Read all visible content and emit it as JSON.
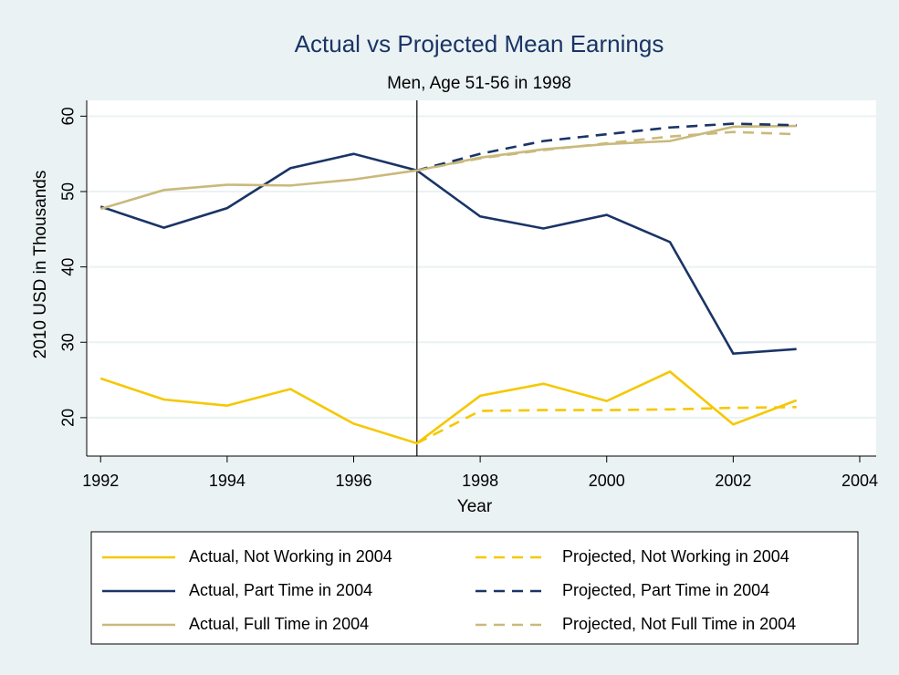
{
  "chart_data": {
    "type": "line",
    "title": "Actual vs Projected Mean Earnings",
    "subtitle": "Men, Age 51-56 in 1998",
    "xlabel": "Year",
    "ylabel": "2010 USD in Thousands",
    "x": [
      1992,
      1993,
      1994,
      1995,
      1996,
      1997,
      1998,
      1999,
      2000,
      2001,
      2002,
      2003
    ],
    "xlim": [
      1991.78,
      2004.26
    ],
    "xticks": [
      1992,
      1994,
      1996,
      1998,
      2000,
      2002,
      2004
    ],
    "ylim": [
      14.9,
      62.1
    ],
    "yticks": [
      20,
      30,
      40,
      50,
      60
    ],
    "grid": true,
    "vline": 1997,
    "series": [
      {
        "name": "Actual, Not Working in 2004",
        "color": "#f5c800",
        "style": "solid",
        "values": [
          25.2,
          22.4,
          21.6,
          23.8,
          19.2,
          16.6,
          22.9,
          24.5,
          22.2,
          26.1,
          19.1,
          22.3
        ]
      },
      {
        "name": "Actual, Part Time in 2004",
        "color": "#1a3466",
        "style": "solid",
        "values": [
          48.0,
          45.2,
          47.8,
          53.1,
          55.0,
          52.8,
          46.7,
          45.1,
          46.9,
          43.3,
          28.5,
          29.1
        ]
      },
      {
        "name": "Actual, Full Time in 2004",
        "color": "#c9b97c",
        "style": "solid",
        "values": [
          47.7,
          50.2,
          50.9,
          50.8,
          51.6,
          52.8,
          54.5,
          55.6,
          56.3,
          56.7,
          58.6,
          58.7
        ]
      },
      {
        "name": "Projected, Not Working in 2004",
        "color": "#f5c800",
        "style": "dashed",
        "values": [
          null,
          null,
          null,
          null,
          null,
          16.6,
          20.9,
          21.0,
          21.0,
          21.1,
          21.3,
          21.4
        ]
      },
      {
        "name": "Projected, Part Time in 2004",
        "color": "#1a3466",
        "style": "dashed",
        "values": [
          null,
          null,
          null,
          null,
          null,
          52.8,
          55.0,
          56.7,
          57.6,
          58.5,
          59.0,
          58.8
        ]
      },
      {
        "name": "Projected, Not Full Time in 2004",
        "color": "#c9b97c",
        "style": "dashed",
        "values": [
          null,
          null,
          null,
          null,
          null,
          52.8,
          54.4,
          55.5,
          56.4,
          57.3,
          57.9,
          57.6
        ]
      }
    ]
  }
}
